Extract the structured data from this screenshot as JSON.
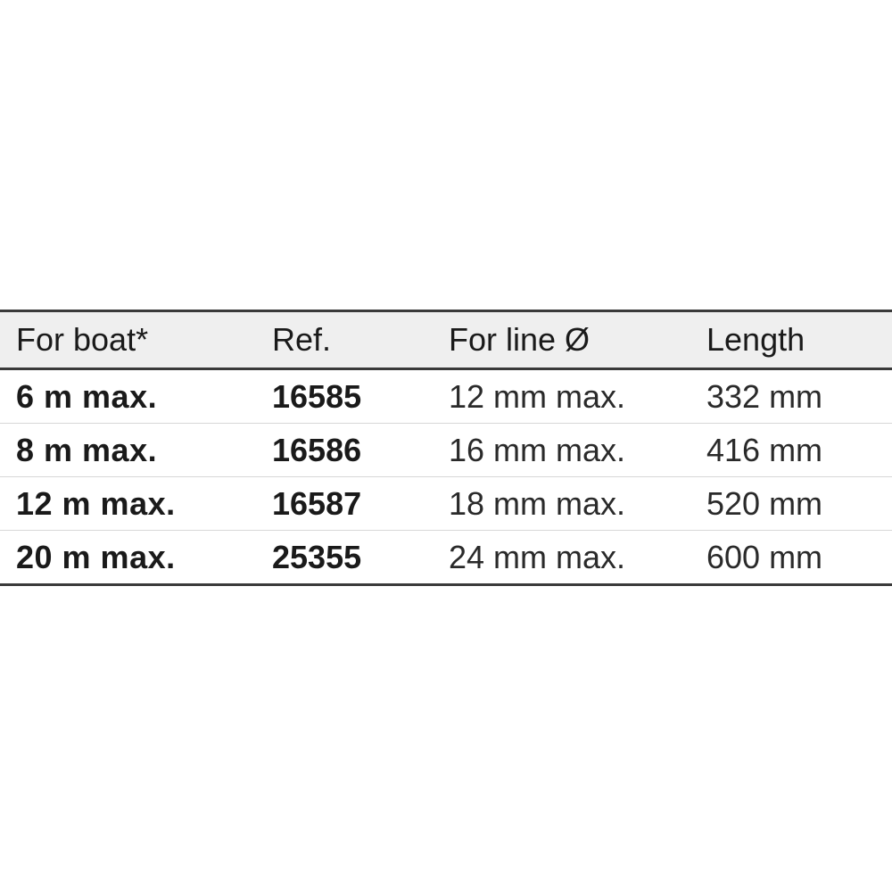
{
  "table": {
    "headers": [
      "For boat*",
      "Ref.",
      "For line Ø",
      "Length"
    ],
    "rows": [
      [
        "6 m max.",
        "16585",
        "12 mm max.",
        "332 mm"
      ],
      [
        "8 m max.",
        "16586",
        "16 mm max.",
        "416 mm"
      ],
      [
        "12 m max.",
        "16587",
        "18 mm max.",
        "520 mm"
      ],
      [
        "20 m max.",
        "25355",
        "24 mm max.",
        "600 mm"
      ]
    ]
  }
}
